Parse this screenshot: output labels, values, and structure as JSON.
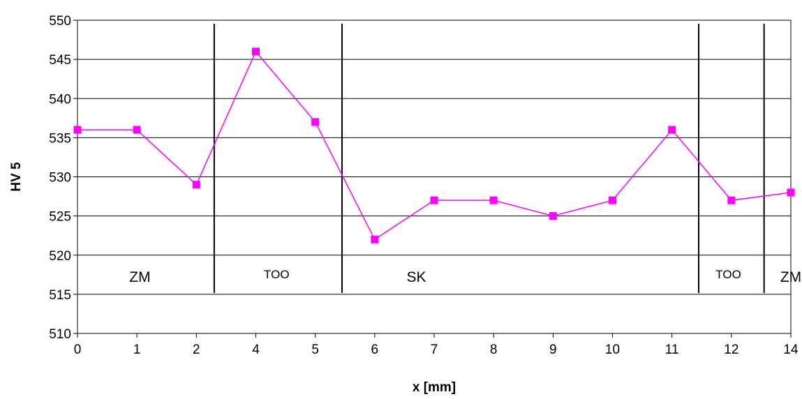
{
  "chart_data": {
    "type": "line",
    "title": "",
    "xlabel": "x [mm]",
    "ylabel": "HV 5",
    "categories": [
      "0",
      "1",
      "2",
      "4",
      "5",
      "6",
      "7",
      "8",
      "9",
      "10",
      "11",
      "12",
      "14"
    ],
    "series": [
      {
        "values": [
          536,
          536,
          529,
          546,
          537,
          522,
          527,
          527,
          525,
          527,
          536,
          527,
          528
        ],
        "color": "#ff00ff",
        "marker": "square"
      }
    ],
    "ylim": [
      510,
      550
    ],
    "yticks": [
      510,
      515,
      520,
      525,
      530,
      535,
      540,
      545,
      550
    ],
    "grid": "horizontal",
    "legend": "none",
    "zone_boundaries_category_index": [
      2.3,
      4.45,
      10.45,
      11.55
    ],
    "zones": [
      {
        "label": "ZM",
        "center_index": 1.05,
        "style": "big"
      },
      {
        "label": "TOO",
        "center_index": 3.35,
        "style": "small"
      },
      {
        "label": "SK",
        "center_index": 5.7,
        "style": "big"
      },
      {
        "label": "TOO",
        "center_index": 10.95,
        "style": "small"
      },
      {
        "label": "ZM",
        "center_index": 12.0,
        "style": "big"
      }
    ]
  }
}
